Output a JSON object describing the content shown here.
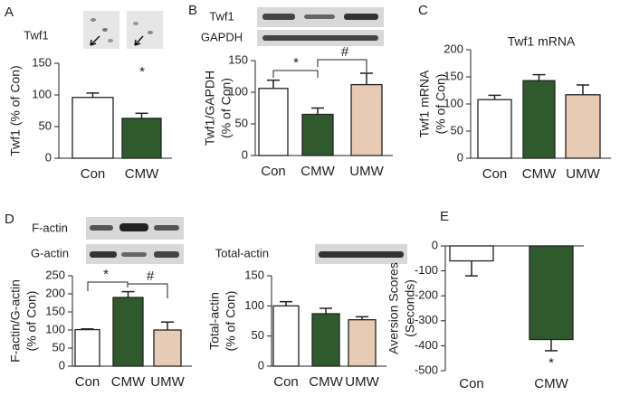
{
  "chart_data": [
    {
      "type": "bar",
      "panel": "A",
      "blot_labels": [
        "Twf1"
      ],
      "ylabel": [
        "Twf1 (% of Con)"
      ],
      "categories": [
        "Con",
        "CMW"
      ],
      "values": [
        96,
        63
      ],
      "errors": [
        7,
        8
      ],
      "colors": [
        "#ffffff",
        "#2e5a2e"
      ],
      "ylim": [
        0,
        150
      ],
      "yticks": [
        0,
        50,
        100,
        150
      ],
      "annotations": [
        "*"
      ]
    },
    {
      "type": "bar",
      "panel": "B",
      "blot_labels": [
        "Twf1",
        "GAPDH"
      ],
      "ylabel": [
        "Twf1/GAPDH",
        "(% of Con)"
      ],
      "categories": [
        "Con",
        "CMW",
        "UMW"
      ],
      "values": [
        106,
        65,
        112
      ],
      "errors": [
        13,
        10,
        18
      ],
      "colors": [
        "#ffffff",
        "#2e5a2e",
        "#e8cbb5"
      ],
      "ylim": [
        0,
        150
      ],
      "yticks": [
        0,
        50,
        100,
        150
      ],
      "annotations": [
        "*",
        "#"
      ]
    },
    {
      "type": "bar",
      "panel": "C",
      "title": "Twf1 mRNA",
      "ylabel": [
        "Twf1 mRNA",
        "(% of Con)"
      ],
      "categories": [
        "Con",
        "CMW",
        "UMW"
      ],
      "values": [
        108,
        143,
        117
      ],
      "errors": [
        8,
        11,
        18
      ],
      "colors": [
        "#ffffff",
        "#2e5a2e",
        "#e8cbb5"
      ],
      "ylim": [
        0,
        200
      ],
      "yticks": [
        0,
        50,
        100,
        150,
        200
      ]
    },
    {
      "type": "bar",
      "panel": "D",
      "blot_labels": [
        "F-actin",
        "G-actin"
      ],
      "ylabel": [
        "F-actin/G-actin",
        "(% of Con)"
      ],
      "categories": [
        "Con",
        "CMW",
        "UMW"
      ],
      "values": [
        101,
        190,
        100
      ],
      "errors": [
        2,
        16,
        22
      ],
      "colors": [
        "#ffffff",
        "#2e5a2e",
        "#e8cbb5"
      ],
      "ylim": [
        0,
        250
      ],
      "yticks": [
        0,
        50,
        100,
        150,
        200,
        250
      ],
      "annotations": [
        "*",
        "#"
      ]
    },
    {
      "type": "bar",
      "blot_labels": [
        "Total-actin"
      ],
      "ylabel": [
        "Total-actin",
        "(% of Con)"
      ],
      "categories": [
        "Con",
        "CMW",
        "UMW"
      ],
      "values": [
        100,
        87,
        77
      ],
      "errors": [
        7,
        9,
        5
      ],
      "colors": [
        "#ffffff",
        "#2e5a2e",
        "#e8cbb5"
      ],
      "ylim": [
        0,
        150
      ],
      "yticks": [
        0,
        50,
        100,
        150
      ]
    },
    {
      "type": "bar",
      "panel": "E",
      "ylabel": [
        "Aversion Scores",
        "(Seconds)"
      ],
      "categories": [
        "Con",
        "CMW"
      ],
      "values": [
        -60,
        -375
      ],
      "errors": [
        60,
        45
      ],
      "colors": [
        "#ffffff",
        "#2e5a2e"
      ],
      "ylim": [
        -500,
        0
      ],
      "yticks": [
        -500,
        -400,
        -300,
        -200,
        -100,
        0
      ],
      "annotations": [
        "*"
      ]
    }
  ]
}
